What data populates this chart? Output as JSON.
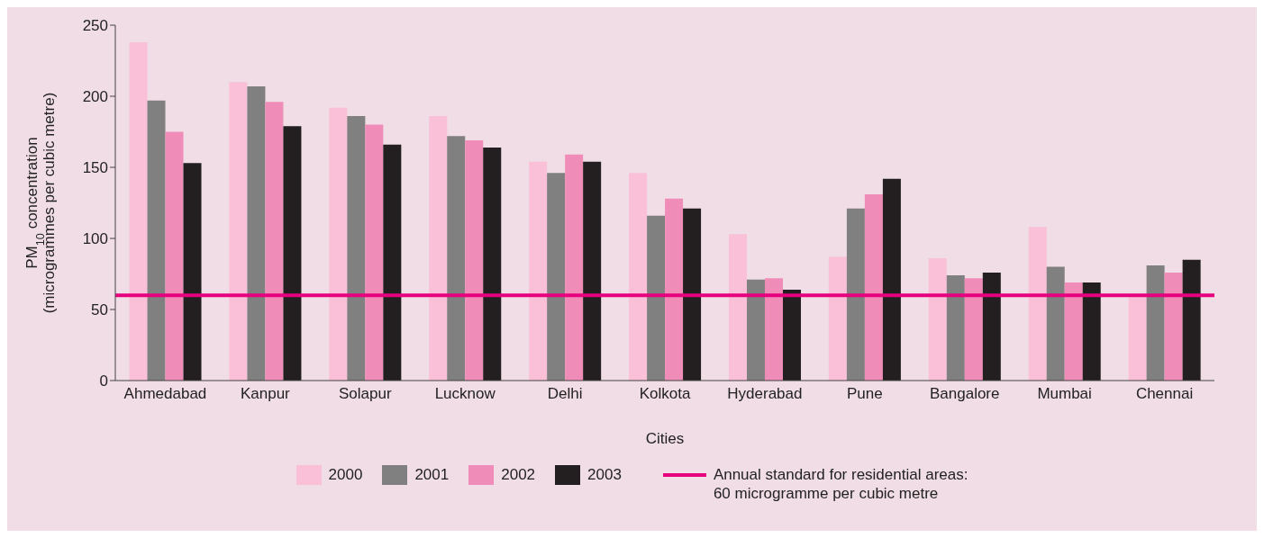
{
  "chart_data": {
    "type": "bar",
    "xlabel": "Cities",
    "ylabel": "PM$_{10}$ concentration\n(microgrammes per cubic metre)",
    "categories": [
      "Ahmedabad",
      "Kanpur",
      "Solapur",
      "Lucknow",
      "Delhi",
      "Kolkota",
      "Hyderabad",
      "Pune",
      "Bangalore",
      "Mumbai",
      "Chennai"
    ],
    "series": [
      {
        "name": "2000",
        "color": "#f9c0d8",
        "values": [
          238,
          210,
          192,
          186,
          154,
          146,
          103,
          87,
          86,
          108,
          60
        ]
      },
      {
        "name": "2001",
        "color": "#808080",
        "values": [
          197,
          207,
          186,
          172,
          146,
          116,
          71,
          121,
          74,
          80,
          81
        ]
      },
      {
        "name": "2002",
        "color": "#f08cb8",
        "values": [
          175,
          196,
          180,
          169,
          159,
          128,
          72,
          131,
          72,
          69,
          76
        ]
      },
      {
        "name": "2003",
        "color": "#231f20",
        "values": [
          153,
          179,
          166,
          164,
          154,
          121,
          64,
          142,
          76,
          69,
          85
        ]
      }
    ],
    "ylim": [
      0,
      250
    ],
    "yticks": [
      0,
      50,
      100,
      150,
      200,
      250
    ],
    "legend": "bottom",
    "ref_lines": [
      {
        "axis": "y",
        "value": 60,
        "label": "Annual standard for residential areas:\n60 microgramme per cubic metre",
        "color": "#e6007e"
      }
    ]
  }
}
